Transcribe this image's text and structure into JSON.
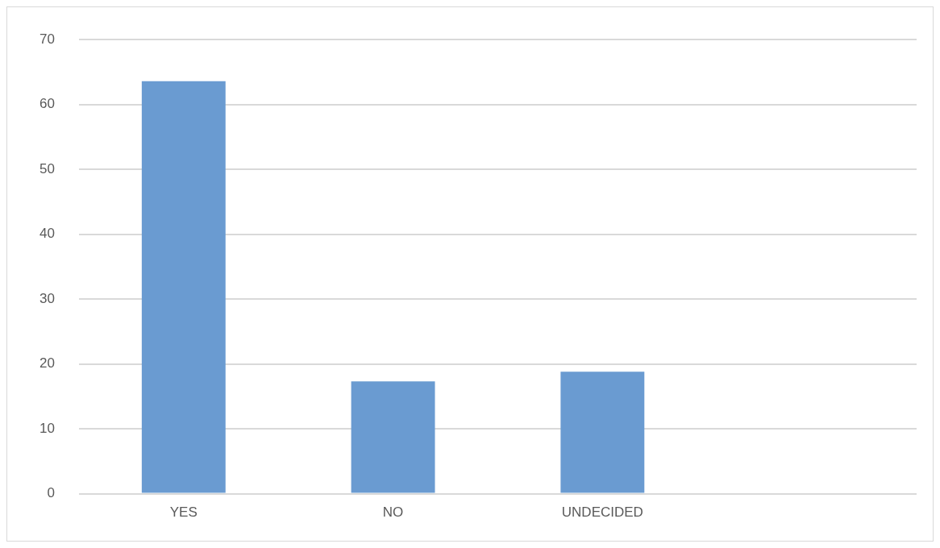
{
  "chart_data": {
    "type": "bar",
    "categories": [
      "YES",
      "NO",
      "UNDECIDED",
      null
    ],
    "values": [
      63.6,
      17.3,
      18.8,
      null
    ],
    "color": "#6a9bd1",
    "ylim": [
      0,
      70
    ],
    "yticks": [
      0,
      10,
      20,
      30,
      40,
      50,
      60,
      70
    ],
    "grid": "y",
    "legend": false
  }
}
